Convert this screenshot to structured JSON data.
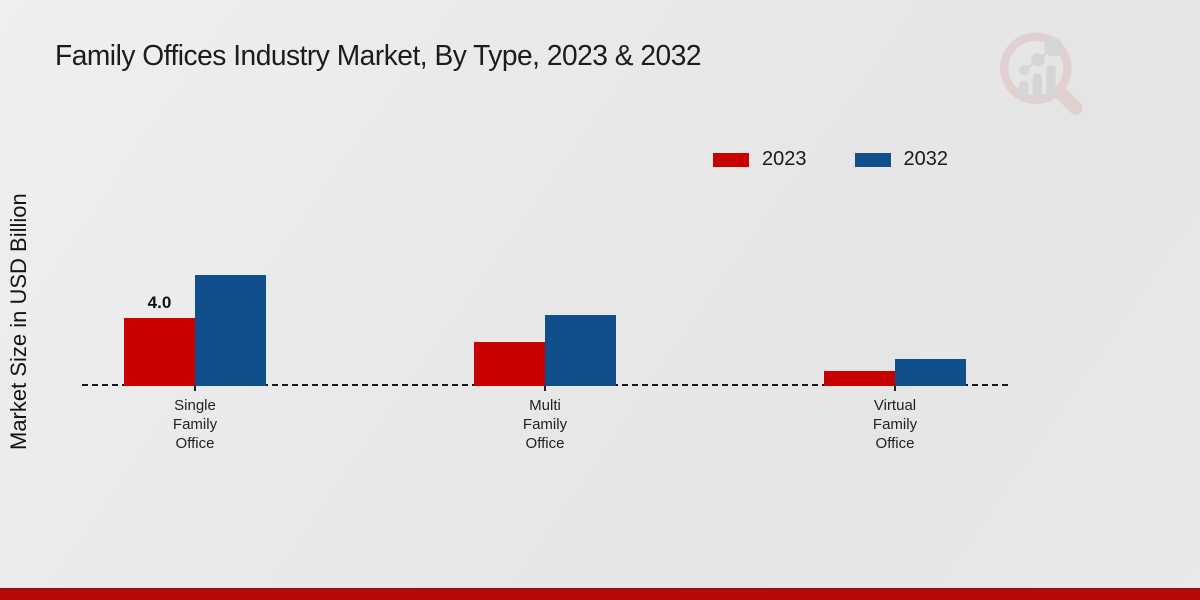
{
  "title": "Family Offices Industry Market, By Type, 2023 & 2032",
  "y_axis_label": "Market Size in USD Billion",
  "legend": [
    {
      "label": "2023",
      "color": "#c80202"
    },
    {
      "label": "2032",
      "color": "#114e8c"
    }
  ],
  "watermark": {
    "icon": "magnifier-bar-chart-logo"
  },
  "colors": {
    "series_2023": "#c80202",
    "series_2032": "#114e8c",
    "bottom_stripe": "#b80707",
    "background": "#e9e9ea",
    "baseline": "#1a1a1a"
  },
  "chart_data": {
    "type": "bar",
    "title": "Family Offices Industry Market, By Type, 2023 & 2032",
    "xlabel": "",
    "ylabel": "Market Size in USD Billion",
    "categories": [
      "Single Family Office",
      "Multi Family Office",
      "Virtual Family Office"
    ],
    "series": [
      {
        "name": "2023",
        "color": "#c80202",
        "values": [
          4.0,
          2.6,
          0.9
        ]
      },
      {
        "name": "2032",
        "color": "#114e8c",
        "values": [
          6.5,
          4.2,
          1.6
        ]
      }
    ],
    "bar_labels": [
      {
        "series": "2023",
        "category": "Single Family Office",
        "text": "4.0"
      }
    ],
    "ylim": [
      0,
      7.5
    ],
    "grid": false,
    "baseline_style": "dashed",
    "legend_position": "top-right",
    "axis_ticks_visible": false
  }
}
